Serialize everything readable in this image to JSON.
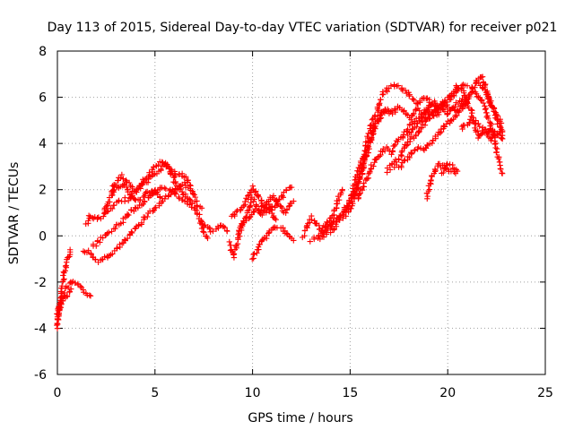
{
  "chart_data": {
    "type": "scatter",
    "title": "Day 113 of 2015, Sidereal Day-to-day VTEC variation (SDTVAR) for receiver p021",
    "xlabel": "GPS time / hours",
    "ylabel": "SDTVAR / TECUs",
    "xlim": [
      0,
      25
    ],
    "ylim": [
      -6,
      8
    ],
    "xticks": [
      0,
      5,
      10,
      15,
      20,
      25
    ],
    "yticks": [
      -6,
      -4,
      -2,
      0,
      2,
      4,
      6,
      8
    ],
    "grid": true,
    "marker": "+",
    "color": "#ff0000",
    "tracks": [
      [
        [
          0.0,
          -4.0
        ],
        [
          0.1,
          -3.2
        ],
        [
          0.25,
          -2.2
        ],
        [
          0.4,
          -1.4
        ],
        [
          0.55,
          -0.9
        ],
        [
          0.65,
          -0.6
        ]
      ],
      [
        [
          0.0,
          -3.7
        ],
        [
          0.15,
          -3.0
        ],
        [
          0.35,
          -2.5
        ],
        [
          0.6,
          -2.1
        ],
        [
          0.85,
          -2.0
        ],
        [
          1.1,
          -2.2
        ],
        [
          1.4,
          -2.4
        ],
        [
          1.7,
          -2.6
        ]
      ],
      [
        [
          0.0,
          -3.4
        ],
        [
          0.2,
          -2.9
        ],
        [
          0.45,
          -2.6
        ],
        [
          0.7,
          -2.3
        ]
      ],
      [
        [
          1.3,
          -0.6
        ],
        [
          1.6,
          -0.7
        ],
        [
          1.9,
          -1.0
        ],
        [
          2.2,
          -1.1
        ],
        [
          2.6,
          -0.9
        ],
        [
          3.0,
          -0.6
        ],
        [
          3.4,
          -0.3
        ],
        [
          3.8,
          0.1
        ],
        [
          4.2,
          0.5
        ],
        [
          4.6,
          0.9
        ],
        [
          5.0,
          1.2
        ],
        [
          5.4,
          1.5
        ]
      ],
      [
        [
          1.5,
          0.5
        ],
        [
          1.7,
          0.9
        ],
        [
          2.0,
          0.7
        ],
        [
          2.4,
          0.9
        ],
        [
          2.8,
          1.2
        ],
        [
          3.2,
          1.5
        ],
        [
          3.6,
          1.6
        ],
        [
          4.0,
          1.9
        ],
        [
          4.4,
          2.2
        ],
        [
          4.8,
          2.5
        ],
        [
          5.2,
          2.8
        ],
        [
          5.5,
          3.1
        ],
        [
          5.8,
          2.9
        ],
        [
          6.1,
          2.6
        ],
        [
          6.4,
          2.7
        ],
        [
          6.7,
          2.3
        ],
        [
          7.0,
          1.8
        ],
        [
          7.2,
          1.3
        ],
        [
          7.4,
          1.2
        ]
      ],
      [
        [
          1.8,
          -0.5
        ],
        [
          2.2,
          -0.2
        ],
        [
          2.6,
          0.1
        ],
        [
          3.0,
          0.4
        ],
        [
          3.4,
          0.7
        ],
        [
          3.8,
          1.1
        ],
        [
          4.2,
          1.3
        ],
        [
          4.6,
          1.6
        ],
        [
          5.0,
          1.8
        ],
        [
          5.4,
          2.1
        ],
        [
          5.8,
          2.0
        ],
        [
          6.2,
          1.7
        ],
        [
          6.6,
          1.5
        ],
        [
          7.0,
          1.2
        ],
        [
          7.3,
          0.8
        ],
        [
          7.5,
          0.2
        ],
        [
          7.7,
          -0.1
        ]
      ],
      [
        [
          2.4,
          1.0
        ],
        [
          2.7,
          1.6
        ],
        [
          2.9,
          2.2
        ],
        [
          3.1,
          2.1
        ],
        [
          3.4,
          2.3
        ],
        [
          3.7,
          1.8
        ],
        [
          4.0,
          1.5
        ],
        [
          4.3,
          1.6
        ],
        [
          4.6,
          1.9
        ],
        [
          4.9,
          2.0
        ],
        [
          5.2,
          1.7
        ],
        [
          5.5,
          1.6
        ],
        [
          5.8,
          1.8
        ],
        [
          6.1,
          2.0
        ],
        [
          6.4,
          2.3
        ],
        [
          6.7,
          2.1
        ]
      ],
      [
        [
          2.8,
          1.8
        ],
        [
          3.1,
          2.4
        ],
        [
          3.3,
          2.6
        ],
        [
          3.6,
          2.3
        ],
        [
          3.9,
          2.0
        ],
        [
          4.2,
          2.1
        ],
        [
          4.5,
          2.5
        ],
        [
          4.8,
          2.8
        ],
        [
          5.1,
          3.1
        ],
        [
          5.4,
          3.2
        ],
        [
          5.7,
          2.9
        ],
        [
          6.0,
          2.4
        ],
        [
          6.3,
          2.0
        ],
        [
          6.6,
          1.7
        ],
        [
          6.9,
          1.4
        ]
      ],
      [
        [
          7.3,
          0.6
        ],
        [
          7.6,
          0.4
        ],
        [
          7.9,
          0.2
        ],
        [
          8.1,
          0.3
        ],
        [
          8.4,
          0.5
        ],
        [
          8.7,
          0.2
        ]
      ],
      [
        [
          8.8,
          -0.3
        ],
        [
          9.0,
          -0.9
        ],
        [
          9.2,
          -0.4
        ],
        [
          9.4,
          0.3
        ],
        [
          9.6,
          0.8
        ],
        [
          9.8,
          1.2
        ],
        [
          10.0,
          1.6
        ],
        [
          10.2,
          1.3
        ],
        [
          10.4,
          0.9
        ],
        [
          10.6,
          1.1
        ],
        [
          10.8,
          1.3
        ],
        [
          11.0,
          1.0
        ],
        [
          11.2,
          0.7
        ]
      ],
      [
        [
          8.9,
          0.8
        ],
        [
          9.2,
          1.0
        ],
        [
          9.5,
          1.3
        ],
        [
          9.8,
          1.7
        ],
        [
          10.0,
          2.1
        ],
        [
          10.2,
          1.9
        ],
        [
          10.5,
          1.4
        ],
        [
          10.8,
          1.0
        ],
        [
          11.1,
          1.3
        ],
        [
          11.4,
          1.6
        ],
        [
          11.7,
          1.9
        ],
        [
          12.0,
          2.1
        ]
      ],
      [
        [
          9.3,
          0.2
        ],
        [
          9.6,
          0.6
        ],
        [
          9.9,
          0.9
        ],
        [
          10.2,
          1.1
        ],
        [
          10.5,
          1.2
        ],
        [
          10.8,
          1.5
        ],
        [
          11.1,
          1.7
        ],
        [
          11.4,
          1.3
        ],
        [
          11.6,
          1.0
        ],
        [
          11.8,
          1.2
        ],
        [
          12.1,
          1.5
        ]
      ],
      [
        [
          10.0,
          -1.0
        ],
        [
          10.3,
          -0.5
        ],
        [
          10.6,
          -0.1
        ],
        [
          10.9,
          0.2
        ],
        [
          11.2,
          0.4
        ],
        [
          11.5,
          0.3
        ],
        [
          11.8,
          0.0
        ],
        [
          12.1,
          -0.2
        ]
      ],
      [
        [
          12.6,
          0.0
        ],
        [
          12.8,
          0.4
        ],
        [
          13.0,
          0.8
        ],
        [
          13.2,
          0.6
        ],
        [
          13.4,
          0.3
        ],
        [
          13.6,
          0.1
        ],
        [
          13.8,
          0.3
        ],
        [
          14.0,
          0.5
        ],
        [
          14.3,
          0.6
        ]
      ],
      [
        [
          13.0,
          -0.2
        ],
        [
          13.3,
          -0.1
        ],
        [
          13.6,
          0.3
        ],
        [
          13.9,
          0.7
        ],
        [
          14.2,
          1.0
        ],
        [
          14.4,
          1.6
        ],
        [
          14.6,
          2.0
        ]
      ],
      [
        [
          13.5,
          -0.1
        ],
        [
          13.8,
          0.2
        ],
        [
          14.1,
          0.5
        ],
        [
          14.4,
          0.8
        ],
        [
          14.7,
          1.1
        ],
        [
          15.0,
          1.5
        ],
        [
          15.3,
          2.0
        ],
        [
          15.6,
          2.8
        ],
        [
          15.9,
          3.8
        ],
        [
          16.2,
          4.6
        ],
        [
          16.5,
          5.1
        ],
        [
          16.8,
          5.5
        ],
        [
          17.0,
          5.3
        ]
      ],
      [
        [
          14.0,
          0.2
        ],
        [
          14.3,
          0.5
        ],
        [
          14.6,
          0.8
        ],
        [
          14.9,
          1.3
        ],
        [
          15.2,
          2.1
        ],
        [
          15.5,
          3.0
        ],
        [
          15.8,
          3.9
        ],
        [
          16.1,
          4.8
        ],
        [
          16.4,
          5.4
        ],
        [
          16.7,
          6.2
        ],
        [
          17.0,
          6.4
        ],
        [
          17.3,
          6.5
        ],
        [
          17.6,
          6.4
        ],
        [
          17.9,
          6.2
        ],
        [
          18.2,
          5.9
        ],
        [
          18.5,
          5.7
        ],
        [
          18.8,
          6.0
        ],
        [
          19.1,
          5.8
        ],
        [
          19.4,
          5.6
        ]
      ],
      [
        [
          14.8,
          0.9
        ],
        [
          15.1,
          1.4
        ],
        [
          15.4,
          2.2
        ],
        [
          15.7,
          3.1
        ],
        [
          16.0,
          4.0
        ],
        [
          16.3,
          4.8
        ],
        [
          16.6,
          5.3
        ],
        [
          16.9,
          5.5
        ],
        [
          17.2,
          5.3
        ],
        [
          17.5,
          5.6
        ],
        [
          17.8,
          5.4
        ],
        [
          18.1,
          5.1
        ],
        [
          18.4,
          5.5
        ],
        [
          18.7,
          5.3
        ],
        [
          19.0,
          5.6
        ],
        [
          19.3,
          5.8
        ],
        [
          19.6,
          5.6
        ],
        [
          19.9,
          5.9
        ],
        [
          20.2,
          6.1
        ],
        [
          20.5,
          6.5
        ],
        [
          20.8,
          6.3
        ],
        [
          21.0,
          5.8
        ]
      ],
      [
        [
          15.4,
          1.6
        ],
        [
          15.7,
          2.2
        ],
        [
          16.0,
          2.8
        ],
        [
          16.3,
          3.3
        ],
        [
          16.6,
          3.6
        ],
        [
          16.9,
          3.8
        ],
        [
          17.1,
          3.6
        ],
        [
          17.3,
          4.0
        ],
        [
          17.6,
          4.2
        ],
        [
          17.9,
          4.6
        ],
        [
          18.2,
          4.9
        ],
        [
          18.5,
          5.1
        ],
        [
          18.8,
          5.3
        ],
        [
          19.1,
          5.4
        ],
        [
          19.4,
          5.2
        ],
        [
          19.7,
          5.5
        ],
        [
          20.0,
          5.3
        ],
        [
          20.3,
          5.6
        ],
        [
          20.6,
          5.8
        ],
        [
          20.9,
          5.9
        ],
        [
          21.2,
          5.4
        ],
        [
          21.4,
          4.8
        ],
        [
          21.6,
          4.3
        ],
        [
          21.9,
          4.6
        ],
        [
          22.2,
          4.2
        ],
        [
          22.5,
          4.4
        ],
        [
          22.8,
          4.2
        ]
      ],
      [
        [
          16.9,
          2.8
        ],
        [
          17.2,
          3.1
        ],
        [
          17.5,
          3.4
        ],
        [
          17.8,
          3.8
        ],
        [
          18.1,
          4.2
        ],
        [
          18.4,
          4.4
        ],
        [
          18.7,
          4.7
        ],
        [
          19.0,
          5.0
        ],
        [
          19.3,
          5.3
        ],
        [
          19.6,
          5.6
        ],
        [
          19.9,
          5.8
        ],
        [
          20.2,
          6.0
        ],
        [
          20.5,
          6.3
        ],
        [
          20.8,
          6.6
        ],
        [
          21.0,
          6.5
        ]
      ],
      [
        [
          17.3,
          3.0
        ],
        [
          17.6,
          3.0
        ],
        [
          17.9,
          3.3
        ],
        [
          18.2,
          3.6
        ],
        [
          18.5,
          3.8
        ],
        [
          18.8,
          3.7
        ],
        [
          19.1,
          4.0
        ],
        [
          19.4,
          4.3
        ],
        [
          19.7,
          4.6
        ],
        [
          20.0,
          4.9
        ],
        [
          20.3,
          5.1
        ],
        [
          20.6,
          5.4
        ],
        [
          20.9,
          5.7
        ],
        [
          21.2,
          6.2
        ],
        [
          21.5,
          6.7
        ],
        [
          21.7,
          6.9
        ],
        [
          21.9,
          6.5
        ],
        [
          22.1,
          6.0
        ],
        [
          22.3,
          5.6
        ],
        [
          22.5,
          5.2
        ],
        [
          22.7,
          4.9
        ],
        [
          22.8,
          4.5
        ]
      ],
      [
        [
          18.0,
          4.4
        ],
        [
          18.3,
          4.7
        ],
        [
          18.6,
          5.0
        ],
        [
          18.9,
          5.2
        ],
        [
          19.2,
          5.3
        ],
        [
          19.5,
          5.6
        ],
        [
          19.8,
          5.7
        ],
        [
          20.1,
          5.5
        ],
        [
          20.4,
          5.4
        ],
        [
          20.7,
          5.6
        ],
        [
          21.0,
          5.9
        ]
      ],
      [
        [
          18.9,
          1.6
        ],
        [
          19.1,
          2.2
        ],
        [
          19.3,
          2.8
        ],
        [
          19.5,
          3.1
        ],
        [
          19.8,
          3.0
        ],
        [
          20.1,
          2.8
        ],
        [
          20.4,
          2.7
        ]
      ],
      [
        [
          19.7,
          2.7
        ],
        [
          19.9,
          3.1
        ],
        [
          20.2,
          3.0
        ],
        [
          20.5,
          2.8
        ]
      ],
      [
        [
          20.7,
          4.6
        ],
        [
          20.9,
          4.8
        ],
        [
          21.2,
          5.0
        ],
        [
          21.5,
          4.9
        ],
        [
          21.8,
          4.6
        ],
        [
          22.0,
          4.4
        ],
        [
          22.2,
          4.7
        ],
        [
          22.4,
          4.5
        ]
      ],
      [
        [
          21.4,
          6.7
        ],
        [
          21.6,
          6.6
        ],
        [
          21.9,
          6.3
        ],
        [
          22.1,
          6.0
        ],
        [
          22.4,
          5.4
        ],
        [
          22.6,
          4.9
        ],
        [
          22.8,
          4.2
        ]
      ],
      [
        [
          21.2,
          6.4
        ],
        [
          21.5,
          6.1
        ],
        [
          21.8,
          5.8
        ],
        [
          22.0,
          5.2
        ],
        [
          22.2,
          4.8
        ],
        [
          22.4,
          4.1
        ],
        [
          22.6,
          3.4
        ],
        [
          22.8,
          2.7
        ]
      ]
    ]
  }
}
